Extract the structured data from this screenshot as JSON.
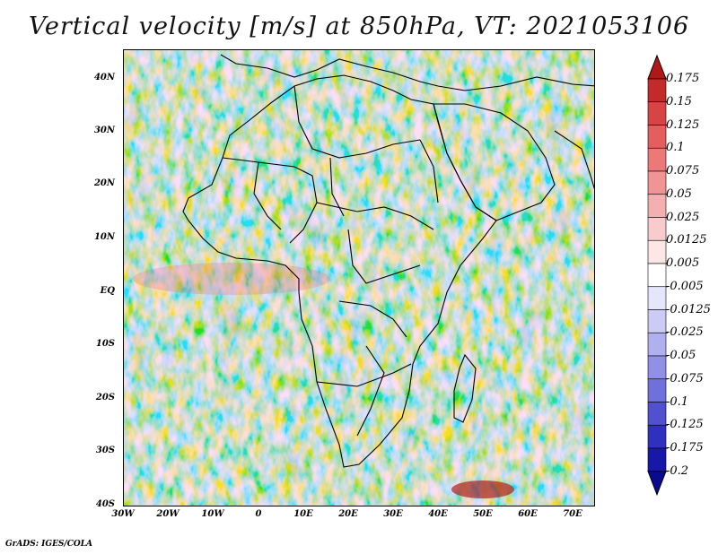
{
  "title": "Vertical velocity [m/s] at 850hPa, VT: 2021053106",
  "credit": "GrADS: IGES/COLA",
  "lat_labels": [
    "40N",
    "30N",
    "20N",
    "10N",
    "EQ",
    "10S",
    "20S",
    "30S",
    "40S"
  ],
  "lon_labels": [
    "30W",
    "20W",
    "10W",
    "0",
    "10E",
    "20E",
    "30E",
    "40E",
    "50E",
    "60E",
    "70E"
  ],
  "colorbar": {
    "labels": [
      "0.175",
      "0.15",
      "0.125",
      "0.1",
      "0.075",
      "0.05",
      "0.025",
      "0.0125",
      "0.005",
      "-0.005",
      "-0.0125",
      "-0.025",
      "-0.05",
      "-0.075",
      "-0.1",
      "-0.125",
      "-0.175",
      "-0.2"
    ],
    "colors": [
      "#b01818",
      "#c42a2a",
      "#d84444",
      "#e45e5e",
      "#ec7878",
      "#f09494",
      "#f4b0b0",
      "#f8cccc",
      "#fce6e6",
      "#ffffff",
      "#e6e6fa",
      "#cbcbf4",
      "#b0b0ee",
      "#9090e6",
      "#7070dc",
      "#5050d0",
      "#3030c0",
      "#1818a8",
      "#0a0a90"
    ]
  }
}
